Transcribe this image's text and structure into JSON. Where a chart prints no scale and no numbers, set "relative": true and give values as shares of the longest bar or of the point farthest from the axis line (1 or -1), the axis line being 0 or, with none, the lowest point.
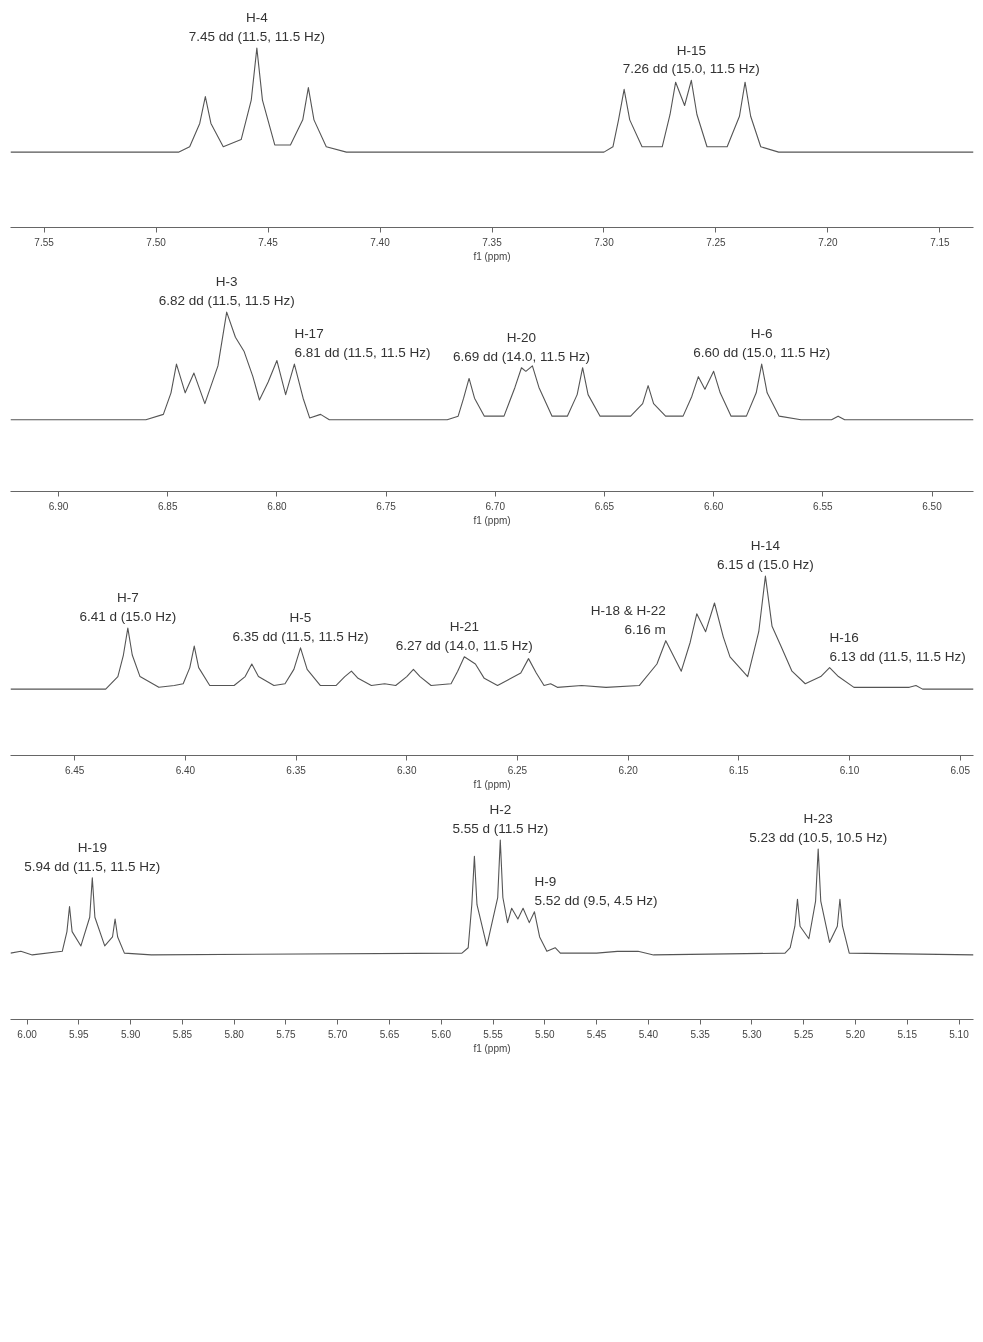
{
  "chart_data": [
    {
      "type": "line",
      "relative": true,
      "xlabel": "f1 (ppm)",
      "tick_labels": "x",
      "grid": false,
      "xlim": [
        7.565,
        7.135
      ],
      "xticks": [
        {
          "value": 7.55,
          "label": "7.55"
        },
        {
          "value": 7.5,
          "label": "7.50"
        },
        {
          "value": 7.45,
          "label": "7.45"
        },
        {
          "value": 7.4,
          "label": "7.40"
        },
        {
          "value": 7.35,
          "label": "7.35"
        },
        {
          "value": 7.3,
          "label": "7.30"
        },
        {
          "value": 7.25,
          "label": "7.25"
        },
        {
          "value": 7.2,
          "label": "7.20"
        },
        {
          "value": 7.15,
          "label": "7.15"
        }
      ],
      "series": [
        {
          "color": "#555555",
          "x": [
            7.565,
            7.49,
            7.485,
            7.4805,
            7.478,
            7.4755,
            7.47,
            7.462,
            7.4575,
            7.455,
            7.4525,
            7.447,
            7.44,
            7.4345,
            7.432,
            7.4295,
            7.424,
            7.415,
            7.3,
            7.296,
            7.2935,
            7.291,
            7.2885,
            7.283,
            7.274,
            7.2705,
            7.268,
            7.264,
            7.261,
            7.2585,
            7.254,
            7.245,
            7.2395,
            7.237,
            7.2345,
            7.23,
            7.222,
            7.135
          ],
          "values": [
            0.42,
            0.42,
            0.45,
            0.58,
            0.73,
            0.58,
            0.45,
            0.49,
            0.71,
            1.0,
            0.71,
            0.46,
            0.46,
            0.6,
            0.78,
            0.6,
            0.45,
            0.42,
            0.42,
            0.45,
            0.6,
            0.77,
            0.6,
            0.45,
            0.45,
            0.63,
            0.81,
            0.68,
            0.82,
            0.63,
            0.45,
            0.45,
            0.62,
            0.81,
            0.62,
            0.45,
            0.42,
            0.42
          ]
        }
      ],
      "annotations": [
        {
          "text": "H-4\n7.45 dd (11.5, 11.5 Hz)",
          "x": 7.455,
          "y": 1.0
        },
        {
          "text": "H-15\n7.26 dd (15.0, 11.5 Hz)",
          "x": 7.261,
          "y": 0.82
        }
      ]
    },
    {
      "type": "line",
      "relative": true,
      "xlabel": "f1 (ppm)",
      "tick_labels": "x",
      "grid": false,
      "xlim": [
        6.922,
        6.481
      ],
      "xticks": [
        {
          "value": 6.9,
          "label": "6.90"
        },
        {
          "value": 6.85,
          "label": "6.85"
        },
        {
          "value": 6.8,
          "label": "6.80"
        },
        {
          "value": 6.75,
          "label": "6.75"
        },
        {
          "value": 6.7,
          "label": "6.70"
        },
        {
          "value": 6.65,
          "label": "6.65"
        },
        {
          "value": 6.6,
          "label": "6.60"
        },
        {
          "value": 6.55,
          "label": "6.55"
        },
        {
          "value": 6.5,
          "label": "6.50"
        }
      ],
      "series": [
        {
          "color": "#555555",
          "x": [
            6.922,
            6.86,
            6.852,
            6.8485,
            6.846,
            6.842,
            6.838,
            6.833,
            6.827,
            6.823,
            6.819,
            6.815,
            6.811,
            6.808,
            6.804,
            6.8,
            6.796,
            6.792,
            6.788,
            6.785,
            6.78,
            6.776,
            6.722,
            6.717,
            6.7145,
            6.712,
            6.7095,
            6.705,
            6.696,
            6.691,
            6.688,
            6.686,
            6.683,
            6.68,
            6.674,
            6.667,
            6.6625,
            6.66,
            6.6575,
            6.652,
            6.638,
            6.6325,
            6.63,
            6.6275,
            6.622,
            6.614,
            6.61,
            6.607,
            6.604,
            6.6,
            6.597,
            6.592,
            6.585,
            6.5805,
            6.578,
            6.5755,
            6.57,
            6.56,
            6.546,
            6.543,
            6.54,
            6.481
          ],
          "values": [
            0.4,
            0.4,
            0.43,
            0.55,
            0.71,
            0.55,
            0.66,
            0.49,
            0.7,
            1.0,
            0.86,
            0.78,
            0.64,
            0.51,
            0.61,
            0.73,
            0.54,
            0.71,
            0.52,
            0.41,
            0.43,
            0.4,
            0.4,
            0.42,
            0.52,
            0.63,
            0.52,
            0.42,
            0.42,
            0.58,
            0.69,
            0.67,
            0.7,
            0.58,
            0.42,
            0.42,
            0.54,
            0.69,
            0.54,
            0.42,
            0.42,
            0.49,
            0.59,
            0.49,
            0.42,
            0.42,
            0.53,
            0.64,
            0.57,
            0.67,
            0.55,
            0.42,
            0.42,
            0.55,
            0.71,
            0.55,
            0.42,
            0.4,
            0.4,
            0.42,
            0.4,
            0.4
          ]
        }
      ],
      "annotations": [
        {
          "text": "H-3\n6.82 dd (11.5, 11.5 Hz)",
          "x": 6.823,
          "y": 1.0
        },
        {
          "text": "H-17\n6.81 dd (11.5, 11.5 Hz)",
          "x": 6.792,
          "y": 0.71
        },
        {
          "text": "H-20\n6.69 dd (14.0, 11.5 Hz)",
          "x": 6.688,
          "y": 0.69
        },
        {
          "text": "H-6\n6.60 dd (15.0, 11.5 Hz)",
          "x": 6.578,
          "y": 0.71
        }
      ]
    },
    {
      "type": "line",
      "relative": true,
      "xlabel": "f1 (ppm)",
      "tick_labels": "x",
      "grid": false,
      "xlim": [
        6.479,
        6.044
      ],
      "xticks": [
        {
          "value": 6.45,
          "label": "6.45"
        },
        {
          "value": 6.4,
          "label": "6.40"
        },
        {
          "value": 6.35,
          "label": "6.35"
        },
        {
          "value": 6.3,
          "label": "6.30"
        },
        {
          "value": 6.25,
          "label": "6.25"
        },
        {
          "value": 6.2,
          "label": "6.20"
        },
        {
          "value": 6.15,
          "label": "6.15"
        },
        {
          "value": 6.1,
          "label": "6.10"
        },
        {
          "value": 6.05,
          "label": "6.05"
        }
      ],
      "series": [
        {
          "color": "#555555",
          "x": [
            6.479,
            6.436,
            6.4305,
            6.428,
            6.426,
            6.424,
            6.4205,
            6.412,
            6.405,
            6.401,
            6.398,
            6.396,
            6.394,
            6.389,
            6.378,
            6.373,
            6.37,
            6.367,
            6.36,
            6.355,
            6.351,
            6.348,
            6.345,
            6.339,
            6.332,
            6.328,
            6.325,
            6.322,
            6.316,
            6.31,
            6.305,
            6.3,
            6.297,
            6.294,
            6.289,
            6.28,
            6.277,
            6.274,
            6.269,
            6.265,
            6.259,
            6.2485,
            6.245,
            6.2415,
            6.238,
            6.235,
            6.232,
            6.221,
            6.21,
            6.195,
            6.187,
            6.183,
            6.176,
            6.172,
            6.169,
            6.165,
            6.161,
            6.157,
            6.154,
            6.146,
            6.141,
            6.138,
            6.135,
            6.131,
            6.126,
            6.12,
            6.113,
            6.109,
            6.105,
            6.098,
            6.087,
            6.073,
            6.07,
            6.067,
            6.044
          ],
          "values": [
            0.37,
            0.37,
            0.44,
            0.56,
            0.71,
            0.56,
            0.44,
            0.38,
            0.39,
            0.4,
            0.49,
            0.61,
            0.49,
            0.39,
            0.39,
            0.44,
            0.51,
            0.44,
            0.39,
            0.4,
            0.48,
            0.6,
            0.48,
            0.39,
            0.39,
            0.44,
            0.47,
            0.43,
            0.39,
            0.4,
            0.39,
            0.44,
            0.48,
            0.44,
            0.39,
            0.4,
            0.47,
            0.55,
            0.51,
            0.43,
            0.39,
            0.46,
            0.54,
            0.46,
            0.39,
            0.4,
            0.38,
            0.39,
            0.38,
            0.39,
            0.51,
            0.64,
            0.47,
            0.63,
            0.79,
            0.69,
            0.85,
            0.66,
            0.55,
            0.44,
            0.69,
            1.0,
            0.72,
            0.61,
            0.47,
            0.4,
            0.44,
            0.49,
            0.44,
            0.38,
            0.38,
            0.38,
            0.39,
            0.37,
            0.37
          ]
        }
      ],
      "annotations": [
        {
          "text": "H-7\n6.41 d (15.0 Hz)",
          "x": 6.426,
          "y": 0.71
        },
        {
          "text": "H-5\n6.35 dd (11.5, 11.5 Hz)",
          "x": 6.348,
          "y": 0.6
        },
        {
          "text": "H-21\n6.27 dd (14.0, 11.5 Hz)",
          "x": 6.274,
          "y": 0.55
        },
        {
          "text": "H-18 & H-22\n6.16 m",
          "x": 6.183,
          "y": 0.64
        },
        {
          "text": "H-14\n6.15 d (15.0 Hz)",
          "x": 6.138,
          "y": 1.0
        },
        {
          "text": "H-16\n6.13 dd (11.5, 11.5 Hz)",
          "x": 6.109,
          "y": 0.49
        }
      ]
    },
    {
      "type": "line",
      "relative": true,
      "xlabel": "f1 (ppm)",
      "tick_labels": "x",
      "grid": false,
      "xlim": [
        6.016,
        5.086
      ],
      "xticks": [
        {
          "value": 6.0,
          "label": "6.00"
        },
        {
          "value": 5.95,
          "label": "5.95"
        },
        {
          "value": 5.9,
          "label": "5.90"
        },
        {
          "value": 5.85,
          "label": "5.85"
        },
        {
          "value": 5.8,
          "label": "5.80"
        },
        {
          "value": 5.75,
          "label": "5.75"
        },
        {
          "value": 5.7,
          "label": "5.70"
        },
        {
          "value": 5.65,
          "label": "5.65"
        },
        {
          "value": 5.6,
          "label": "5.60"
        },
        {
          "value": 5.55,
          "label": "5.55"
        },
        {
          "value": 5.5,
          "label": "5.50"
        },
        {
          "value": 5.45,
          "label": "5.45"
        },
        {
          "value": 5.4,
          "label": "5.40"
        },
        {
          "value": 5.35,
          "label": "5.35"
        },
        {
          "value": 5.3,
          "label": "5.30"
        },
        {
          "value": 5.25,
          "label": "5.25"
        },
        {
          "value": 5.2,
          "label": "5.20"
        },
        {
          "value": 5.15,
          "label": "5.15"
        },
        {
          "value": 5.1,
          "label": "5.10"
        }
      ],
      "series": [
        {
          "color": "#555555",
          "x": [
            6.016,
            6.006,
            5.995,
            5.966,
            5.9615,
            5.959,
            5.9565,
            5.948,
            5.9395,
            5.937,
            5.9345,
            5.925,
            5.9175,
            5.915,
            5.9125,
            5.906,
            5.88,
            5.58,
            5.574,
            5.5705,
            5.568,
            5.5655,
            5.556,
            5.5455,
            5.543,
            5.5405,
            5.536,
            5.532,
            5.526,
            5.521,
            5.515,
            5.51,
            5.505,
            5.498,
            5.49,
            5.485,
            5.45,
            5.43,
            5.41,
            5.395,
            5.268,
            5.263,
            5.2585,
            5.256,
            5.2535,
            5.245,
            5.2385,
            5.236,
            5.2335,
            5.225,
            5.2175,
            5.215,
            5.2125,
            5.206,
            5.086
          ],
          "values": [
            0.37,
            0.38,
            0.36,
            0.38,
            0.49,
            0.63,
            0.49,
            0.41,
            0.57,
            0.79,
            0.57,
            0.41,
            0.46,
            0.56,
            0.46,
            0.37,
            0.36,
            0.37,
            0.4,
            0.64,
            0.91,
            0.64,
            0.41,
            0.68,
            1.0,
            0.68,
            0.54,
            0.62,
            0.56,
            0.62,
            0.54,
            0.6,
            0.46,
            0.38,
            0.4,
            0.37,
            0.37,
            0.38,
            0.38,
            0.36,
            0.37,
            0.4,
            0.52,
            0.67,
            0.52,
            0.45,
            0.66,
            0.95,
            0.66,
            0.43,
            0.52,
            0.67,
            0.52,
            0.37,
            0.36
          ]
        }
      ],
      "annotations": [
        {
          "text": "H-19\n5.94 dd (11.5, 11.5 Hz)",
          "x": 5.937,
          "y": 0.79
        },
        {
          "text": "H-2\n5.55 d (11.5 Hz)",
          "x": 5.543,
          "y": 1.0
        },
        {
          "text": "H-9\n5.52 dd (9.5, 4.5 Hz)",
          "x": 5.51,
          "y": 0.6
        },
        {
          "text": "H-23\n5.23 dd (10.5, 10.5 Hz)",
          "x": 5.236,
          "y": 0.95
        }
      ]
    }
  ]
}
